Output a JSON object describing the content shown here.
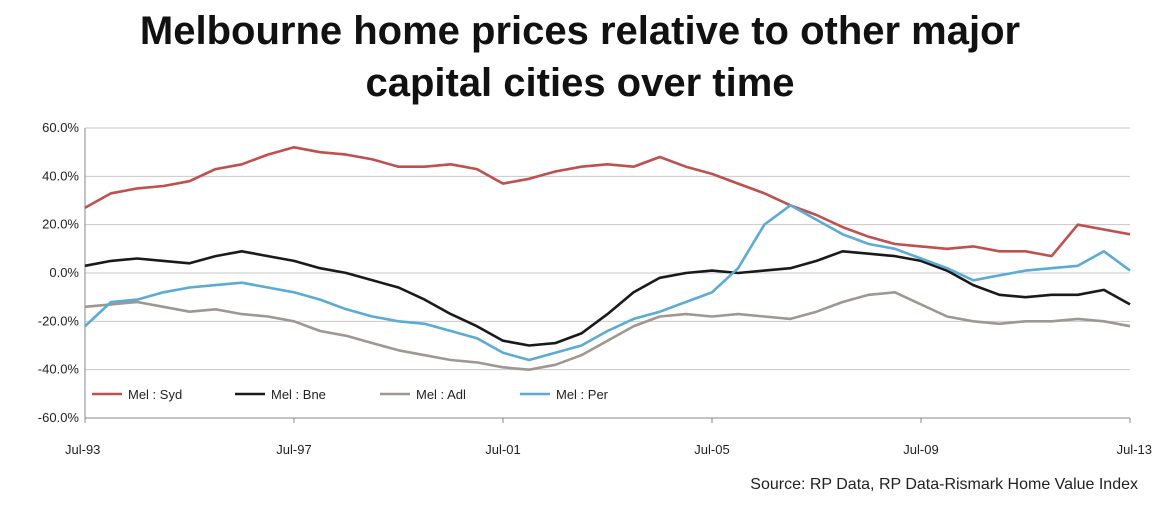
{
  "chart_data": {
    "type": "line",
    "title_line1": "Melbourne home prices relative to other major",
    "title_line2": "capital cities over time",
    "source": "Source: RP Data, RP Data-Rismark Home Value Index",
    "x_tick_labels": [
      "Jul-93",
      "Jul-97",
      "Jul-01",
      "Jul-05",
      "Jul-09",
      "Jul-13"
    ],
    "x_ticks": [
      1993.5,
      1997.5,
      2001.5,
      2005.5,
      2009.5,
      2013.5
    ],
    "xlim": [
      1993.5,
      2013.5
    ],
    "y_tick_labels": [
      "60.0%",
      "40.0%",
      "20.0%",
      "0.0%",
      "-20.0%",
      "-40.0%",
      "-60.0%"
    ],
    "y_ticks": [
      60,
      40,
      20,
      0,
      -20,
      -40,
      -60
    ],
    "ylim": [
      -60,
      60
    ],
    "grid": true,
    "legend_position": "bottom-left",
    "series": [
      {
        "name": "Mel : Syd",
        "color": "#c0504d",
        "x": [
          1993.5,
          1994.0,
          1994.5,
          1995.0,
          1995.5,
          1996.0,
          1996.5,
          1997.0,
          1997.5,
          1998.0,
          1998.5,
          1999.0,
          1999.5,
          2000.0,
          2000.5,
          2001.0,
          2001.5,
          2002.0,
          2002.5,
          2003.0,
          2003.5,
          2004.0,
          2004.5,
          2005.0,
          2005.5,
          2006.0,
          2006.5,
          2007.0,
          2007.5,
          2008.0,
          2008.5,
          2009.0,
          2009.5,
          2010.0,
          2010.5,
          2011.0,
          2011.5,
          2012.0,
          2012.5,
          2013.0,
          2013.5
        ],
        "y": [
          27,
          33,
          35,
          36,
          38,
          43,
          45,
          49,
          52,
          50,
          49,
          47,
          44,
          44,
          45,
          43,
          37,
          39,
          42,
          44,
          45,
          44,
          48,
          44,
          41,
          37,
          33,
          28,
          24,
          19,
          15,
          12,
          11,
          10,
          11,
          9,
          9,
          7,
          20,
          18,
          16
        ]
      },
      {
        "name": "Mel : Bne",
        "color": "#1a1a1a",
        "x": [
          1993.5,
          1994.0,
          1994.5,
          1995.0,
          1995.5,
          1996.0,
          1996.5,
          1997.0,
          1997.5,
          1998.0,
          1998.5,
          1999.0,
          1999.5,
          2000.0,
          2000.5,
          2001.0,
          2001.5,
          2002.0,
          2002.5,
          2003.0,
          2003.5,
          2004.0,
          2004.5,
          2005.0,
          2005.5,
          2006.0,
          2006.5,
          2007.0,
          2007.5,
          2008.0,
          2008.5,
          2009.0,
          2009.5,
          2010.0,
          2010.5,
          2011.0,
          2011.5,
          2012.0,
          2012.5,
          2013.0,
          2013.5
        ],
        "y": [
          3,
          5,
          6,
          5,
          4,
          7,
          9,
          7,
          5,
          2,
          0,
          -3,
          -6,
          -11,
          -17,
          -22,
          -28,
          -30,
          -29,
          -25,
          -17,
          -8,
          -2,
          0,
          1,
          0,
          1,
          2,
          5,
          9,
          8,
          7,
          5,
          1,
          -5,
          -9,
          -10,
          -9,
          -9,
          -7,
          -13
        ]
      },
      {
        "name": "Mel : Adl",
        "color": "#a09890",
        "x": [
          1993.5,
          1994.0,
          1994.5,
          1995.0,
          1995.5,
          1996.0,
          1996.5,
          1997.0,
          1997.5,
          1998.0,
          1998.5,
          1999.0,
          1999.5,
          2000.0,
          2000.5,
          2001.0,
          2001.5,
          2002.0,
          2002.5,
          2003.0,
          2003.5,
          2004.0,
          2004.5,
          2005.0,
          2005.5,
          2006.0,
          2006.5,
          2007.0,
          2007.5,
          2008.0,
          2008.5,
          2009.0,
          2009.5,
          2010.0,
          2010.5,
          2011.0,
          2011.5,
          2012.0,
          2012.5,
          2013.0,
          2013.5
        ],
        "y": [
          -14,
          -13,
          -12,
          -14,
          -16,
          -15,
          -17,
          -18,
          -20,
          -24,
          -26,
          -29,
          -32,
          -34,
          -36,
          -37,
          -39,
          -40,
          -38,
          -34,
          -28,
          -22,
          -18,
          -17,
          -18,
          -17,
          -18,
          -19,
          -16,
          -12,
          -9,
          -8,
          -13,
          -18,
          -20,
          -21,
          -20,
          -20,
          -19,
          -20,
          -22
        ]
      },
      {
        "name": "Mel : Per",
        "color": "#5aabd6",
        "x": [
          1993.5,
          1994.0,
          1994.5,
          1995.0,
          1995.5,
          1996.0,
          1996.5,
          1997.0,
          1997.5,
          1998.0,
          1998.5,
          1999.0,
          1999.5,
          2000.0,
          2000.5,
          2001.0,
          2001.5,
          2002.0,
          2002.5,
          2003.0,
          2003.5,
          2004.0,
          2004.5,
          2005.0,
          2005.5,
          2006.0,
          2006.5,
          2007.0,
          2007.5,
          2008.0,
          2008.5,
          2009.0,
          2009.5,
          2010.0,
          2010.5,
          2011.0,
          2011.5,
          2012.0,
          2012.5,
          2013.0,
          2013.5
        ],
        "y": [
          -22,
          -12,
          -11,
          -8,
          -6,
          -5,
          -4,
          -6,
          -8,
          -11,
          -15,
          -18,
          -20,
          -21,
          -24,
          -27,
          -33,
          -36,
          -33,
          -30,
          -24,
          -19,
          -16,
          -12,
          -8,
          2,
          20,
          28,
          22,
          16,
          12,
          10,
          6,
          2,
          -3,
          -1,
          1,
          2,
          3,
          9,
          1
        ]
      }
    ]
  }
}
